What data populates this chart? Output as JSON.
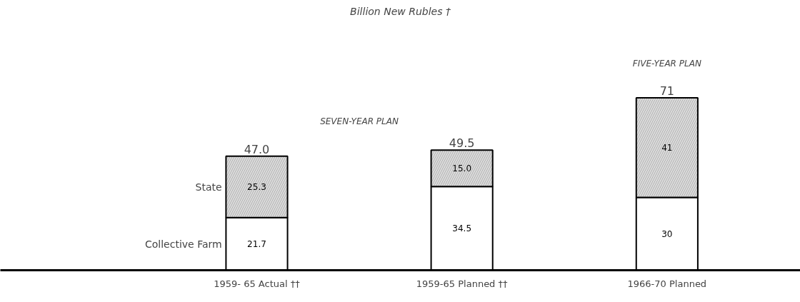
{
  "chart_data": {
    "type": "bar",
    "stacked": true,
    "title": "Billion New Rubles †",
    "categories": [
      "1959- 65 Actual ††",
      "1959-65 Planned ††",
      "1966-70 Planned"
    ],
    "series": [
      {
        "name": "Collective Farm",
        "color": "#ffffff",
        "values": [
          21.7,
          34.5,
          30
        ],
        "value_labels": [
          "21.7",
          "34.5",
          "30"
        ]
      },
      {
        "name": "State",
        "color": "#dcdcdc",
        "values": [
          25.3,
          15.0,
          41
        ],
        "value_labels": [
          "25.3",
          "15.0",
          "41"
        ]
      }
    ],
    "totals": [
      "47.0",
      "49.5",
      "71"
    ],
    "annotations": [
      "SEVEN-YEAR PLAN",
      "FIVE-YEAR PLAN"
    ],
    "grid": false
  }
}
